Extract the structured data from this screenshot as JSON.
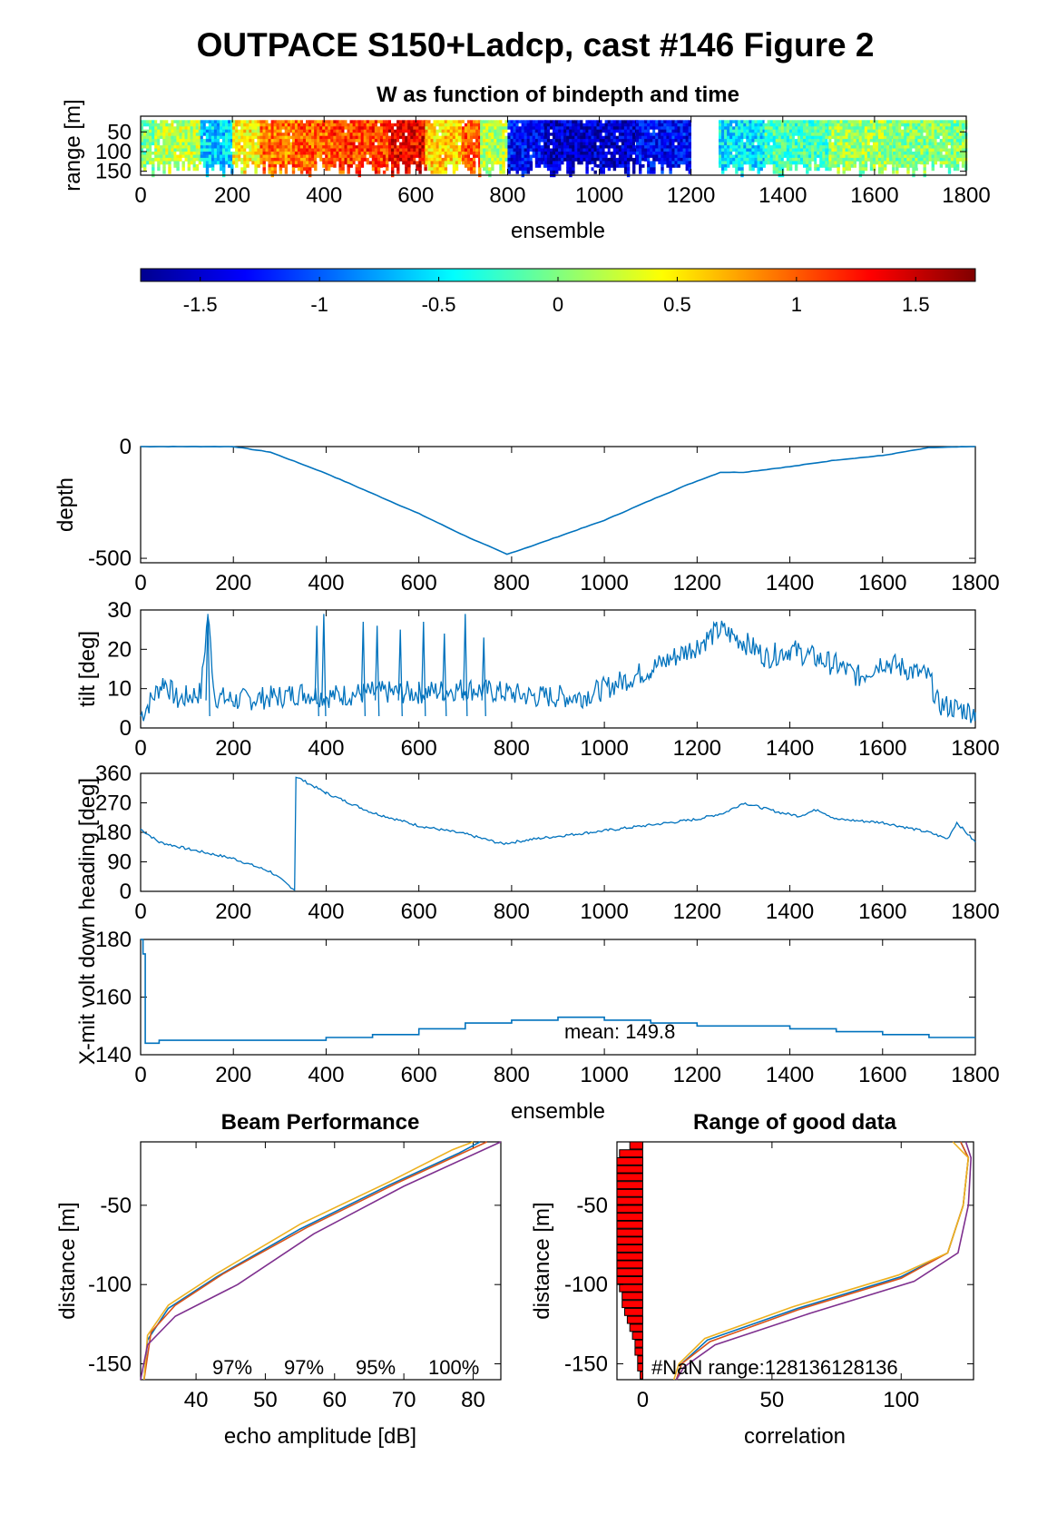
{
  "title": "OUTPACE S150+Ladcp, cast #146 Figure 2",
  "chart_data": [
    {
      "type": "heatmap",
      "title": "W as function of bindepth and time",
      "xlabel": "ensemble",
      "ylabel": "range [m]",
      "xlim": [
        0,
        1800
      ],
      "ylim": [
        10,
        160
      ],
      "y_reversed": true,
      "xticks": [
        "0",
        "200",
        "400",
        "600",
        "800",
        "1000",
        "1200",
        "1400",
        "1600",
        "1800"
      ],
      "yticks": [
        "50",
        "100",
        "150"
      ],
      "segments": [
        {
          "x": [
            0,
            30
          ],
          "w": 0.0
        },
        {
          "x": [
            30,
            130
          ],
          "w": 0.2
        },
        {
          "x": [
            130,
            200
          ],
          "w": -0.6
        },
        {
          "x": [
            200,
            260
          ],
          "w": 0.45
        },
        {
          "x": [
            260,
            330
          ],
          "w": 0.9
        },
        {
          "x": [
            330,
            420
          ],
          "w": 1.0
        },
        {
          "x": [
            420,
            540
          ],
          "w": 1.1
        },
        {
          "x": [
            540,
            620
          ],
          "w": 1.35
        },
        {
          "x": [
            620,
            700
          ],
          "w": 0.6
        },
        {
          "x": [
            700,
            740
          ],
          "w": 1.0
        },
        {
          "x": [
            740,
            800
          ],
          "w": 0.2
        },
        {
          "x": [
            800,
            880
          ],
          "w": -1.3
        },
        {
          "x": [
            880,
            1080
          ],
          "w": -1.5
        },
        {
          "x": [
            1080,
            1200
          ],
          "w": -1.3
        },
        {
          "x": [
            1260,
            1360
          ],
          "w": -0.5
        },
        {
          "x": [
            1360,
            1500
          ],
          "w": -0.2
        },
        {
          "x": [
            1500,
            1640
          ],
          "w": 0.1
        },
        {
          "x": [
            1640,
            1800
          ],
          "w": 0.0
        }
      ]
    },
    {
      "type": "colorbar",
      "range": [
        -1.75,
        1.75
      ],
      "ticks": [
        "-1.5",
        "-1",
        "-0.5",
        "0",
        "0.5",
        "1",
        "1.5"
      ]
    },
    {
      "type": "line",
      "ylabel": "depth",
      "xlim": [
        0,
        1800
      ],
      "ylim": [
        -520,
        0
      ],
      "xticks": [
        "0",
        "200",
        "400",
        "600",
        "800",
        "1000",
        "1200",
        "1400",
        "1600",
        "1800"
      ],
      "yticks": [
        "-500",
        "0"
      ],
      "x": [
        0,
        200,
        280,
        400,
        500,
        600,
        700,
        790,
        850,
        1000,
        1100,
        1180,
        1250,
        1300,
        1400,
        1500,
        1600,
        1700,
        1800
      ],
      "y": [
        0,
        0,
        -25,
        -120,
        -210,
        -300,
        -400,
        -482,
        -440,
        -330,
        -240,
        -170,
        -115,
        -115,
        -90,
        -60,
        -40,
        -5,
        0
      ]
    },
    {
      "type": "line",
      "ylabel": "tilt [deg]",
      "xlim": [
        0,
        1800
      ],
      "ylim": [
        0,
        30
      ],
      "xticks": [
        "0",
        "200",
        "400",
        "600",
        "800",
        "1000",
        "1200",
        "1400",
        "1600",
        "1800"
      ],
      "yticks": [
        "0",
        "10",
        "20",
        "30"
      ],
      "x": [
        0,
        50,
        80,
        100,
        130,
        145,
        160,
        200,
        300,
        350,
        400,
        500,
        600,
        700,
        780,
        850,
        950,
        1000,
        1100,
        1200,
        1250,
        1300,
        1350,
        1400,
        1500,
        1550,
        1600,
        1650,
        1700,
        1720,
        1760,
        1800
      ],
      "y": [
        3,
        12,
        7,
        8,
        9,
        29,
        8,
        7,
        8,
        9,
        8,
        9,
        9,
        10,
        9,
        8,
        8,
        10,
        15,
        21,
        25,
        22,
        18,
        20,
        16,
        13,
        17,
        15,
        13,
        6,
        5,
        4
      ],
      "spikes": [
        [
          145,
          29
        ],
        [
          380,
          26
        ],
        [
          395,
          29
        ],
        [
          480,
          27
        ],
        [
          510,
          26
        ],
        [
          560,
          25
        ],
        [
          610,
          27
        ],
        [
          655,
          24
        ],
        [
          700,
          29
        ],
        [
          740,
          23
        ]
      ]
    },
    {
      "type": "line",
      "ylabel": "X-mit volt down heading [deg]",
      "xlim": [
        0,
        1800
      ],
      "ylim": [
        0,
        360
      ],
      "xticks": [
        "0",
        "200",
        "400",
        "600",
        "800",
        "1000",
        "1200",
        "1400",
        "1600",
        "1800"
      ],
      "yticks": [
        "0",
        "90",
        "180",
        "270",
        "360"
      ],
      "x": [
        0,
        40,
        100,
        200,
        280,
        332,
        335,
        400,
        500,
        600,
        700,
        780,
        850,
        1000,
        1200,
        1260,
        1300,
        1380,
        1420,
        1460,
        1500,
        1600,
        1700,
        1740,
        1760,
        1800
      ],
      "y": [
        190,
        150,
        130,
        100,
        60,
        5,
        350,
        300,
        240,
        200,
        175,
        145,
        160,
        185,
        220,
        240,
        270,
        240,
        230,
        250,
        220,
        210,
        180,
        160,
        210,
        150
      ]
    },
    {
      "type": "line",
      "xlabel": "ensemble",
      "xlim": [
        0,
        1800
      ],
      "ylim": [
        140,
        180
      ],
      "xticks": [
        "0",
        "200",
        "400",
        "600",
        "800",
        "1000",
        "1200",
        "1400",
        "1600",
        "1800"
      ],
      "yticks": [
        "140",
        "160",
        "180"
      ],
      "annotation": "mean: 149.8",
      "x": [
        0,
        5,
        10,
        40,
        120,
        300,
        400,
        500,
        600,
        700,
        800,
        900,
        1000,
        1100,
        1200,
        1300,
        1400,
        1500,
        1600,
        1700,
        1800
      ],
      "y": [
        180,
        175,
        144,
        145,
        145,
        145,
        146,
        147,
        149,
        151,
        152,
        153,
        152,
        151,
        150,
        150,
        149,
        148,
        147,
        146,
        146
      ]
    },
    {
      "type": "line",
      "title": "Beam Performance",
      "xlabel": "echo amplitude [dB]",
      "ylabel": "distance [m]",
      "xlim": [
        32,
        84
      ],
      "ylim": [
        -160,
        -10
      ],
      "xticks": [
        "40",
        "50",
        "60",
        "70",
        "80"
      ],
      "yticks": [
        "-50",
        "-100",
        "-150"
      ],
      "annotations": [
        "97%",
        "97%",
        "95%",
        "100%"
      ],
      "series": [
        {
          "color": "#0072bd",
          "x": [
            32.5,
            33,
            36,
            43,
            55,
            68,
            78,
            81
          ],
          "y": [
            -160,
            -135,
            -115,
            -95,
            -65,
            -37,
            -17,
            -10
          ]
        },
        {
          "color": "#d95319",
          "x": [
            32.5,
            33.5,
            37,
            44,
            56,
            69,
            79,
            82
          ],
          "y": [
            -160,
            -130,
            -113,
            -93,
            -64,
            -36,
            -16,
            -10
          ]
        },
        {
          "color": "#edb120",
          "x": [
            32.5,
            33,
            36,
            43,
            55,
            68,
            77,
            80
          ],
          "y": [
            -160,
            -132,
            -113,
            -93,
            -62,
            -35,
            -15,
            -10
          ]
        },
        {
          "color": "#7e2f8e",
          "x": [
            32,
            33,
            37,
            46,
            57,
            70,
            82,
            84
          ],
          "y": [
            -160,
            -138,
            -120,
            -100,
            -68,
            -38,
            -14,
            -10
          ]
        }
      ]
    },
    {
      "type": "line",
      "title": "Range of good data",
      "xlabel": "correlation",
      "ylabel": "distance [m]",
      "xlim": [
        -10,
        128
      ],
      "ylim": [
        -160,
        -10
      ],
      "xticks": [
        "0",
        "50",
        "100"
      ],
      "yticks": [
        "-50",
        "-100",
        "-150"
      ],
      "annotation": "#NaN range:128136128136",
      "bars": [
        {
          "y": -10,
          "v": 5
        },
        {
          "y": -15,
          "v": 9
        },
        {
          "y": -20,
          "v": 10
        },
        {
          "y": -25,
          "v": 10
        },
        {
          "y": -30,
          "v": 10
        },
        {
          "y": -35,
          "v": 10
        },
        {
          "y": -40,
          "v": 10
        },
        {
          "y": -45,
          "v": 10
        },
        {
          "y": -50,
          "v": 10
        },
        {
          "y": -55,
          "v": 10
        },
        {
          "y": -60,
          "v": 10
        },
        {
          "y": -65,
          "v": 10
        },
        {
          "y": -70,
          "v": 10
        },
        {
          "y": -75,
          "v": 10
        },
        {
          "y": -80,
          "v": 10
        },
        {
          "y": -85,
          "v": 10
        },
        {
          "y": -90,
          "v": 10
        },
        {
          "y": -95,
          "v": 10
        },
        {
          "y": -100,
          "v": 9
        },
        {
          "y": -105,
          "v": 8
        },
        {
          "y": -110,
          "v": 8
        },
        {
          "y": -115,
          "v": 7
        },
        {
          "y": -120,
          "v": 6
        },
        {
          "y": -125,
          "v": 5
        },
        {
          "y": -130,
          "v": 4
        },
        {
          "y": -135,
          "v": 3
        },
        {
          "y": -140,
          "v": 3
        },
        {
          "y": -145,
          "v": 2
        },
        {
          "y": -150,
          "v": 2
        },
        {
          "y": -155,
          "v": 1
        }
      ],
      "series": [
        {
          "color": "#0072bd",
          "x": [
            123,
            126,
            124,
            118,
            100,
            60,
            25,
            15,
            13
          ],
          "y": [
            -10,
            -20,
            -50,
            -80,
            -95,
            -115,
            -135,
            -150,
            -160
          ]
        },
        {
          "color": "#d95319",
          "x": [
            123,
            126,
            124,
            118,
            100,
            60,
            26,
            15,
            13
          ],
          "y": [
            -10,
            -20,
            -50,
            -80,
            -96,
            -116,
            -136,
            -150,
            -160
          ]
        },
        {
          "color": "#edb120",
          "x": [
            120,
            126,
            124,
            118,
            99,
            58,
            24,
            14,
            12
          ],
          "y": [
            -10,
            -20,
            -50,
            -80,
            -94,
            -114,
            -134,
            -150,
            -160
          ]
        },
        {
          "color": "#7e2f8e",
          "x": [
            125,
            127,
            126,
            122,
            105,
            65,
            28,
            16,
            13
          ],
          "y": [
            -10,
            -20,
            -50,
            -80,
            -98,
            -118,
            -138,
            -152,
            -160
          ]
        }
      ]
    }
  ]
}
